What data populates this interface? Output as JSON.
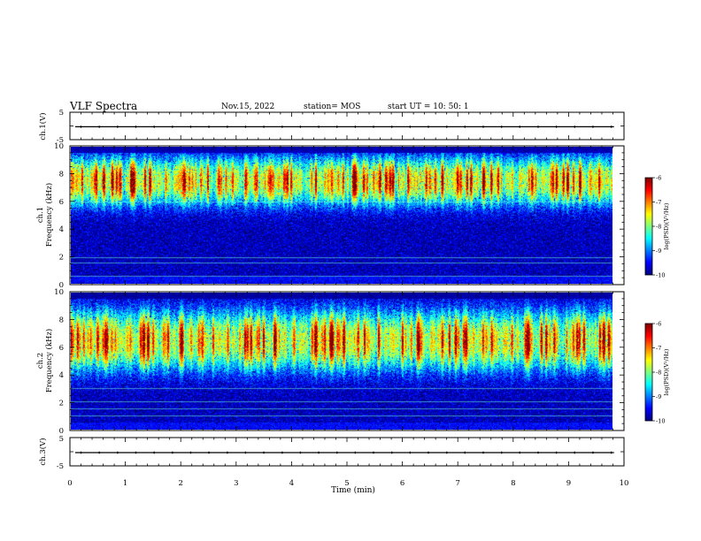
{
  "header": {
    "title": "VLF Spectra",
    "date": "Nov.15, 2022",
    "station": "station= MOS",
    "start_ut": "start  UT =   10: 50: 1"
  },
  "chart_data": {
    "type": "heatmap",
    "title": "VLF Spectra",
    "xlabel": "Time (min)",
    "xlim": [
      0,
      10
    ],
    "xticks": [
      "0",
      "1",
      "2",
      "3",
      "4",
      "5",
      "6",
      "7",
      "8",
      "9",
      "10"
    ],
    "data_end_min": 9.82,
    "panels": [
      {
        "id": "ch1-voltage",
        "type": "line",
        "ylabel": "ch.1(V)",
        "ylim": [
          -5,
          5
        ],
        "yticks": [
          "5",
          "-5"
        ],
        "level": -0.3
      },
      {
        "id": "ch1-spectrogram",
        "type": "heatmap",
        "ylabel": "ch.1",
        "ylabel2": "Frequency (kHz)",
        "ylim": [
          0,
          10
        ],
        "yticks": [
          "10",
          "8",
          "6",
          "4",
          "2",
          "0"
        ],
        "intense_band_khz": [
          5.5,
          9.5
        ],
        "lines_khz": [
          0.5,
          1.5,
          1.9,
          6.0
        ],
        "colorbar": {
          "label": "log(PSD)(V²/Hz)",
          "range": [
            -10,
            -6
          ],
          "ticks": [
            "-6",
            "-7",
            "-8",
            "-9",
            "-10"
          ]
        }
      },
      {
        "id": "ch2-spectrogram",
        "type": "heatmap",
        "ylabel": "ch.2",
        "ylabel2": "Frequency (kHz)",
        "ylim": [
          0,
          10
        ],
        "yticks": [
          "10",
          "8",
          "6",
          "4",
          "2",
          "0"
        ],
        "intense_band_khz": [
          4.0,
          9.0
        ],
        "lines_khz": [
          1.0,
          1.5,
          2.0,
          3.0
        ],
        "colorbar": {
          "label": "log(PSD)(V²/Hz)",
          "range": [
            -10,
            -6
          ],
          "ticks": [
            "-6",
            "-7",
            "-8",
            "-9",
            "-10"
          ]
        }
      },
      {
        "id": "ch3-voltage",
        "type": "line",
        "ylabel": "ch.3(V)",
        "ylim": [
          -5,
          5
        ],
        "yticks": [
          "5",
          "-5"
        ],
        "level": -0.3
      }
    ]
  }
}
